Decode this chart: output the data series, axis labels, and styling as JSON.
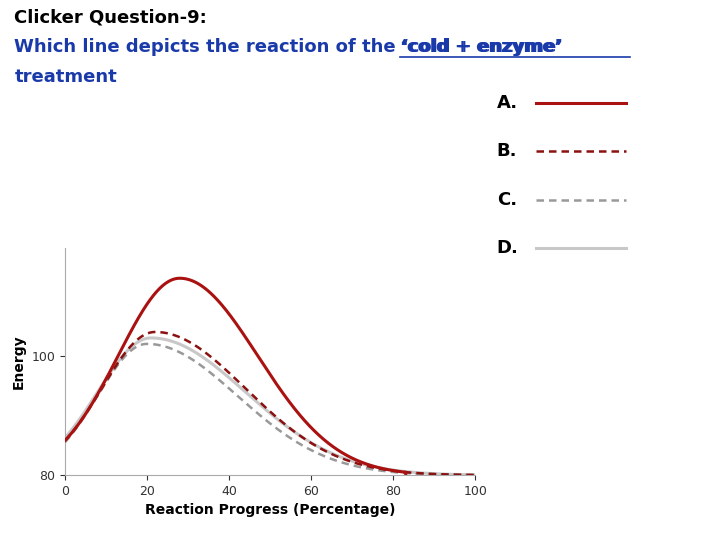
{
  "title_line1": "Clicker Question-9:",
  "title_line2_pre": "Which line depicts the reaction of the ‘",
  "title_line2_styled": "cold + enzyme",
  "title_line2_post": "’",
  "title_line3": "treatment",
  "xlabel": "Reaction Progress (Percentage)",
  "ylabel": "Energy",
  "xlim": [
    0,
    100
  ],
  "ylim": [
    80,
    118
  ],
  "bg_color": "#ffffff",
  "line_A_color": "#aa1111",
  "line_B_color": "#8b1010",
  "line_C_color": "#999999",
  "line_D_color": "#c8c8c8",
  "title_color_black": "#000000",
  "title_color_blue": "#1a3aaa",
  "legend_label_fontsize": 13,
  "axis_label_fontsize": 10,
  "tick_fontsize": 9
}
